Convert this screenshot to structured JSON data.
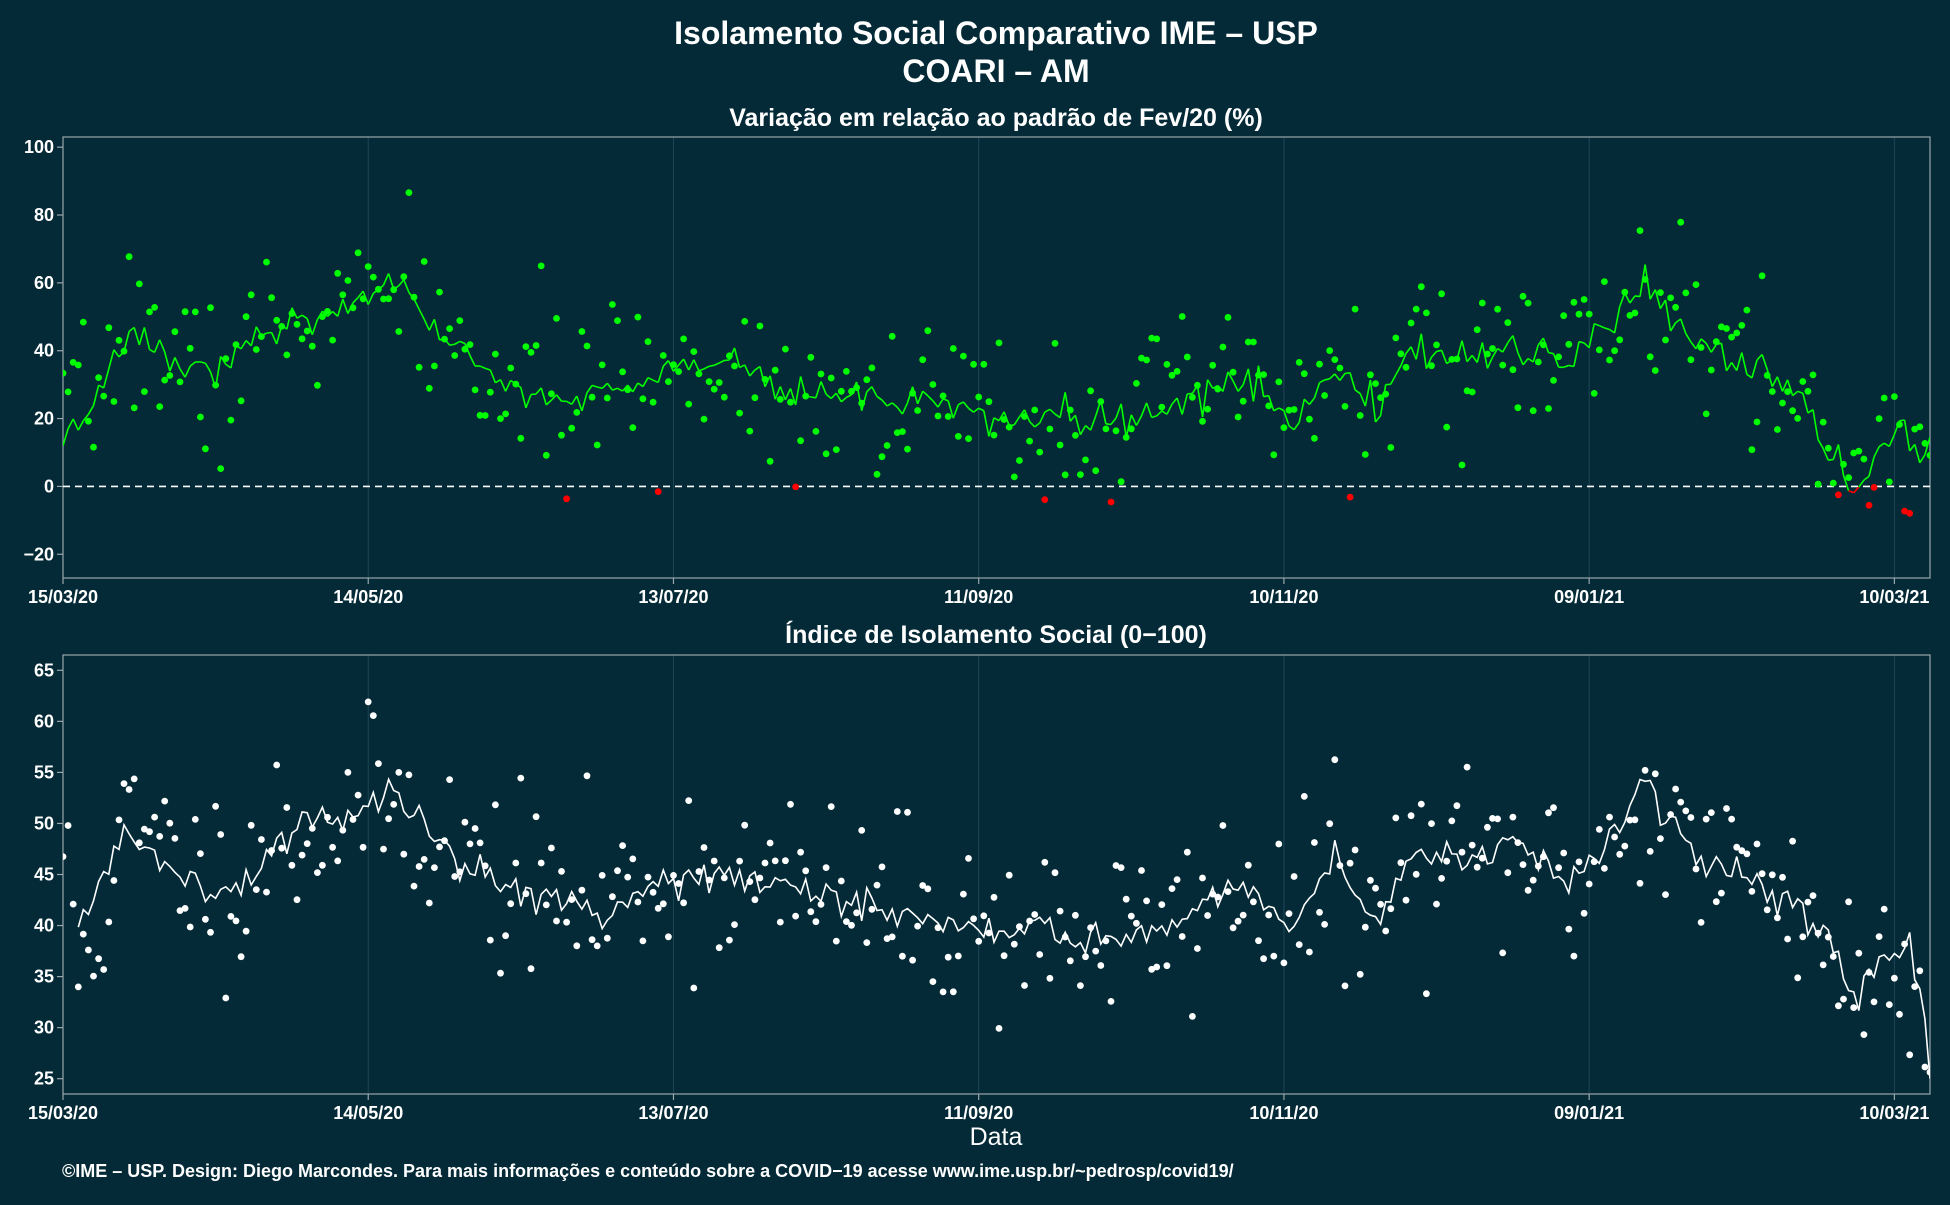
{
  "chart_data": {
    "title": "Isolamento Social Comparativo IME – USP",
    "subtitle": "COARI – AM",
    "xlabel": "Data",
    "footer": "©IME – USP. Design: Diego Marcondes. Para mais informações e conteúdo sobre a COVID−19 acesse www.ime.usp.br/~pedrosp/covid19/",
    "x_range": [
      "2020-03-15",
      "2021-03-17"
    ],
    "x_ticks": [
      "15/03/20",
      "14/05/20",
      "13/07/20",
      "11/09/20",
      "10/11/20",
      "09/01/21",
      "10/03/21"
    ],
    "x_tick_dates": [
      "2020-03-15",
      "2020-05-14",
      "2020-07-13",
      "2020-09-11",
      "2020-11-10",
      "2021-01-09",
      "2021-03-10"
    ],
    "colors": {
      "background": "#032a36",
      "positive": "#00ff00",
      "negative": "#ff0000",
      "index": "#ffffff",
      "zero_line": "#ffffff"
    },
    "panels": [
      {
        "type": "scatter+line",
        "title": "Variação em relação ao padrão de Fev/20 (%)",
        "ylim": [
          -27,
          103
        ],
        "yticks": [
          100,
          80,
          60,
          40,
          20,
          0,
          -20
        ],
        "y_tick_labels": [
          "100",
          "80",
          "60",
          "40",
          "20",
          "0",
          "−20"
        ],
        "reference_line": 0,
        "series": [
          {
            "name": "",
            "key": "daily",
            "kind": "points",
            "anchors": [
              [
                "2020-03-15",
                16
              ],
              [
                "2020-03-20",
                22
              ],
              [
                "2020-03-25",
                42
              ],
              [
                "2020-03-30",
                48
              ],
              [
                "2020-04-05",
                36
              ],
              [
                "2020-04-10",
                34
              ],
              [
                "2020-04-15",
                28
              ],
              [
                "2020-04-20",
                42
              ],
              [
                "2020-04-25",
                47
              ],
              [
                "2020-04-30",
                46
              ],
              [
                "2020-05-05",
                50
              ],
              [
                "2020-05-10",
                53
              ],
              [
                "2020-05-15",
                54
              ],
              [
                "2020-05-20",
                56
              ],
              [
                "2020-05-25",
                52
              ],
              [
                "2020-05-30",
                40
              ],
              [
                "2020-06-05",
                32
              ],
              [
                "2020-06-15",
                28
              ],
              [
                "2020-06-25",
                26
              ],
              [
                "2020-07-05",
                30
              ],
              [
                "2020-07-15",
                34
              ],
              [
                "2020-07-25",
                35
              ],
              [
                "2020-08-05",
                30
              ],
              [
                "2020-08-15",
                28
              ],
              [
                "2020-08-25",
                25
              ],
              [
                "2020-09-05",
                23
              ],
              [
                "2020-09-15",
                20
              ],
              [
                "2020-09-25",
                21
              ],
              [
                "2020-10-05",
                20
              ],
              [
                "2020-10-15",
                23
              ],
              [
                "2020-10-25",
                28
              ],
              [
                "2020-11-05",
                31
              ],
              [
                "2020-11-12",
                18
              ],
              [
                "2020-11-20",
                35
              ],
              [
                "2020-11-28",
                24
              ],
              [
                "2020-12-05",
                39
              ],
              [
                "2020-12-15",
                38
              ],
              [
                "2020-12-25",
                40
              ],
              [
                "2021-01-05",
                36
              ],
              [
                "2021-01-15",
                48
              ],
              [
                "2021-01-20",
                58
              ],
              [
                "2021-01-30",
                42
              ],
              [
                "2021-02-08",
                36
              ],
              [
                "2021-02-15",
                32
              ],
              [
                "2021-02-20",
                22
              ],
              [
                "2021-02-25",
                8
              ],
              [
                "2021-03-02",
                4
              ],
              [
                "2021-03-07",
                12
              ],
              [
                "2021-03-12",
                14
              ],
              [
                "2021-03-16",
                10
              ]
            ],
            "amplitude": 12,
            "seed": 7
          },
          {
            "name": "",
            "key": "rolling",
            "kind": "line",
            "anchors": [
              [
                "2020-03-15",
                16
              ],
              [
                "2020-03-20",
                20
              ],
              [
                "2020-03-25",
                40
              ],
              [
                "2020-03-30",
                47
              ],
              [
                "2020-04-05",
                38
              ],
              [
                "2020-04-10",
                35
              ],
              [
                "2020-04-15",
                34
              ],
              [
                "2020-04-20",
                44
              ],
              [
                "2020-04-25",
                46
              ],
              [
                "2020-04-30",
                47
              ],
              [
                "2020-05-05",
                51
              ],
              [
                "2020-05-10",
                53
              ],
              [
                "2020-05-15",
                55
              ],
              [
                "2020-05-20",
                58
              ],
              [
                "2020-05-25",
                52
              ],
              [
                "2020-05-30",
                42
              ],
              [
                "2020-06-05",
                34
              ],
              [
                "2020-06-15",
                28
              ],
              [
                "2020-06-25",
                26
              ],
              [
                "2020-07-05",
                30
              ],
              [
                "2020-07-15",
                35
              ],
              [
                "2020-07-25",
                36
              ],
              [
                "2020-08-05",
                28
              ],
              [
                "2020-08-15",
                27
              ],
              [
                "2020-08-25",
                24
              ],
              [
                "2020-09-05",
                24
              ],
              [
                "2020-09-15",
                21
              ],
              [
                "2020-09-25",
                21
              ],
              [
                "2020-10-05",
                19
              ],
              [
                "2020-10-15",
                22
              ],
              [
                "2020-10-25",
                28
              ],
              [
                "2020-11-05",
                31
              ],
              [
                "2020-11-12",
                17
              ],
              [
                "2020-11-20",
                36
              ],
              [
                "2020-11-28",
                22
              ],
              [
                "2020-12-05",
                40
              ],
              [
                "2020-12-15",
                38
              ],
              [
                "2020-12-25",
                40
              ],
              [
                "2021-01-05",
                36
              ],
              [
                "2021-01-15",
                50
              ],
              [
                "2021-01-20",
                60
              ],
              [
                "2021-01-30",
                43
              ],
              [
                "2021-02-08",
                36
              ],
              [
                "2021-02-15",
                33
              ],
              [
                "2021-02-20",
                25
              ],
              [
                "2021-02-25",
                10
              ],
              [
                "2021-03-02",
                -3
              ],
              [
                "2021-03-07",
                10
              ],
              [
                "2021-03-12",
                17
              ],
              [
                "2021-03-16",
                9
              ]
            ],
            "amplitude": 2.5,
            "seed": 3
          }
        ]
      },
      {
        "type": "scatter+line",
        "title": "Índice de Isolamento Social (0−100)",
        "ylim": [
          23.5,
          66.5
        ],
        "yticks": [
          65,
          60,
          55,
          50,
          45,
          40,
          35,
          30,
          25
        ],
        "y_tick_labels": [
          "65",
          "60",
          "55",
          "50",
          "45",
          "40",
          "35",
          "30",
          "25"
        ],
        "series": [
          {
            "name": "",
            "key": "daily",
            "kind": "points",
            "anchors": [
              [
                "2020-03-15",
                48
              ],
              [
                "2020-03-18",
                36
              ],
              [
                "2020-03-22",
                40
              ],
              [
                "2020-03-27",
                49
              ],
              [
                "2020-04-02",
                48
              ],
              [
                "2020-04-10",
                45
              ],
              [
                "2020-04-18",
                44
              ],
              [
                "2020-04-25",
                49
              ],
              [
                "2020-05-02",
                49
              ],
              [
                "2020-05-10",
                51
              ],
              [
                "2020-05-18",
                52
              ],
              [
                "2020-05-25",
                50
              ],
              [
                "2020-06-01",
                47
              ],
              [
                "2020-06-10",
                44
              ],
              [
                "2020-06-20",
                43
              ],
              [
                "2020-06-30",
                42
              ],
              [
                "2020-07-10",
                45
              ],
              [
                "2020-07-20",
                45
              ],
              [
                "2020-07-30",
                44
              ],
              [
                "2020-08-10",
                43
              ],
              [
                "2020-08-20",
                42
              ],
              [
                "2020-08-30",
                41
              ],
              [
                "2020-09-10",
                40
              ],
              [
                "2020-09-20",
                40
              ],
              [
                "2020-09-30",
                39
              ],
              [
                "2020-10-10",
                39
              ],
              [
                "2020-10-20",
                40
              ],
              [
                "2020-10-30",
                44
              ],
              [
                "2020-11-05",
                43
              ],
              [
                "2020-11-12",
                40
              ],
              [
                "2020-11-20",
                46
              ],
              [
                "2020-11-28",
                40
              ],
              [
                "2020-12-05",
                46
              ],
              [
                "2020-12-15",
                46
              ],
              [
                "2020-12-25",
                47
              ],
              [
                "2021-01-05",
                44
              ],
              [
                "2021-01-15",
                49
              ],
              [
                "2021-01-20",
                53
              ],
              [
                "2021-01-30",
                47
              ],
              [
                "2021-02-08",
                45
              ],
              [
                "2021-02-15",
                44
              ],
              [
                "2021-02-20",
                43
              ],
              [
                "2021-02-25",
                38
              ],
              [
                "2021-03-02",
                33
              ],
              [
                "2021-03-07",
                36
              ],
              [
                "2021-03-12",
                37
              ],
              [
                "2021-03-16",
                28
              ]
            ],
            "amplitude": 4.5,
            "seed": 11
          },
          {
            "name": "",
            "key": "rolling",
            "kind": "line",
            "anchors": [
              [
                "2020-03-18",
                40
              ],
              [
                "2020-03-22",
                43
              ],
              [
                "2020-03-27",
                49.5
              ],
              [
                "2020-04-02",
                47
              ],
              [
                "2020-04-10",
                44
              ],
              [
                "2020-04-18",
                44
              ],
              [
                "2020-04-25",
                48
              ],
              [
                "2020-05-02",
                50
              ],
              [
                "2020-05-10",
                51
              ],
              [
                "2020-05-15",
                52
              ],
              [
                "2020-05-18",
                53
              ],
              [
                "2020-05-25",
                50
              ],
              [
                "2020-06-01",
                46
              ],
              [
                "2020-06-10",
                44
              ],
              [
                "2020-06-20",
                43
              ],
              [
                "2020-06-30",
                41
              ],
              [
                "2020-07-10",
                45
              ],
              [
                "2020-07-20",
                45
              ],
              [
                "2020-07-30",
                44
              ],
              [
                "2020-08-10",
                43
              ],
              [
                "2020-08-20",
                42
              ],
              [
                "2020-08-30",
                41
              ],
              [
                "2020-09-10",
                40
              ],
              [
                "2020-09-20",
                40
              ],
              [
                "2020-09-30",
                39
              ],
              [
                "2020-10-10",
                39
              ],
              [
                "2020-10-20",
                40
              ],
              [
                "2020-10-30",
                44
              ],
              [
                "2020-11-05",
                43
              ],
              [
                "2020-11-12",
                40
              ],
              [
                "2020-11-20",
                47
              ],
              [
                "2020-11-28",
                40
              ],
              [
                "2020-12-05",
                47
              ],
              [
                "2020-12-15",
                46
              ],
              [
                "2020-12-25",
                48
              ],
              [
                "2021-01-05",
                44
              ],
              [
                "2021-01-15",
                50
              ],
              [
                "2021-01-20",
                54
              ],
              [
                "2021-01-30",
                47
              ],
              [
                "2021-02-08",
                45
              ],
              [
                "2021-02-15",
                43
              ],
              [
                "2021-02-20",
                42
              ],
              [
                "2021-02-25",
                39
              ],
              [
                "2021-03-02",
                33
              ],
              [
                "2021-03-07",
                36
              ],
              [
                "2021-03-12",
                39
              ],
              [
                "2021-03-15",
                34
              ],
              [
                "2021-03-17",
                25
              ]
            ],
            "amplitude": 0.8,
            "seed": 5
          }
        ]
      }
    ]
  }
}
